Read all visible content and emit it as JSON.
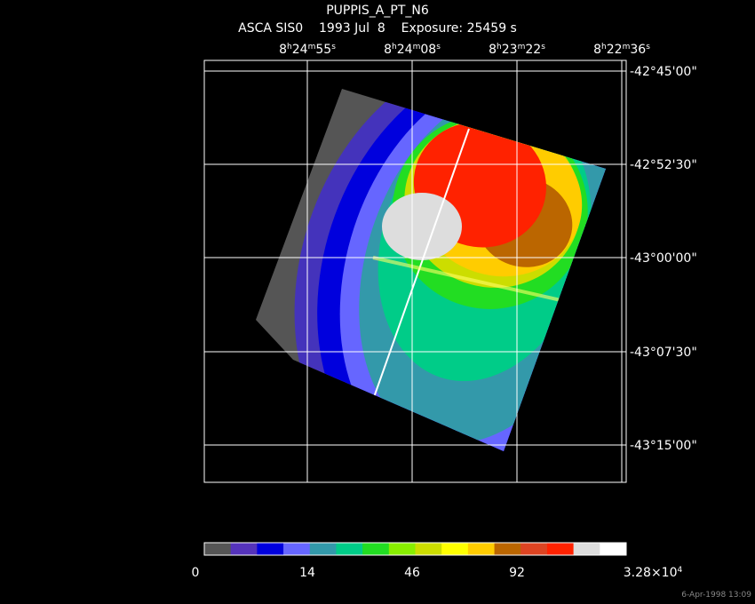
{
  "header": {
    "title": "PUPPIS_A_PT_N6",
    "subtitle": "ASCA SIS0    1993 Jul  8    Exposure: 25459 s"
  },
  "ra_labels": [
    [
      "8",
      "h",
      "24",
      "m",
      "55",
      "s"
    ],
    [
      "8",
      "h",
      "24",
      "m",
      "08",
      "s"
    ],
    [
      "8",
      "h",
      "23",
      "m",
      "22",
      "s"
    ],
    [
      "8",
      "h",
      "22",
      "m",
      "36",
      "s"
    ]
  ],
  "dec_labels": [
    "-42°45'00\"",
    "-42°52'30\"",
    "-43°00'00\"",
    "-43°07'30\"",
    "-43°15'00\""
  ],
  "colorbar_labels": [
    [
      "0"
    ],
    [
      "14"
    ],
    [
      "46"
    ],
    [
      "92"
    ],
    [
      "3.28×10",
      "4"
    ]
  ],
  "timestamp": "6-Apr-1998 13:09"
}
